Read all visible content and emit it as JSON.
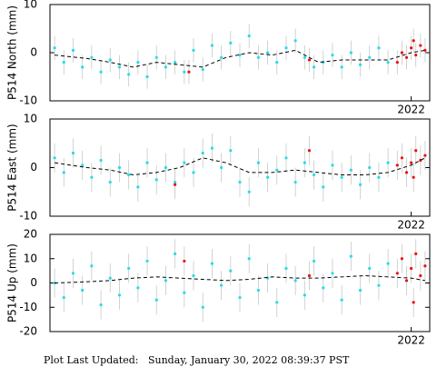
{
  "chart_data": [
    {
      "type": "scatter",
      "ylabel": "P514 North (mm)",
      "xlim": [
        2014.2,
        2022.4
      ],
      "ylim": [
        -10,
        10
      ],
      "xticks": [
        2022
      ],
      "yticks": [
        -10,
        0,
        10
      ],
      "series": [
        {
          "color": "#22ddee",
          "error": 2.5,
          "x": [
            2014.3,
            2014.5,
            2014.7,
            2014.9,
            2015.1,
            2015.3,
            2015.5,
            2015.7,
            2015.9,
            2016.1,
            2016.3,
            2016.5,
            2016.7,
            2016.9,
            2017.1,
            2017.3,
            2017.5,
            2017.7,
            2017.9,
            2018.1,
            2018.3,
            2018.5,
            2018.7,
            2018.9,
            2019.1,
            2019.3,
            2019.5,
            2019.7,
            2019.9,
            2020.1,
            2020.3,
            2020.5,
            2020.7,
            2020.9,
            2021.1,
            2021.3,
            2021.5
          ],
          "values": [
            1,
            -2,
            0.5,
            -3,
            -1,
            -4,
            -1.5,
            -3,
            -4.5,
            -2,
            -5,
            -1,
            -3,
            -2,
            -4,
            0.5,
            -3.5,
            1.5,
            -1,
            2,
            -0.5,
            3.5,
            -1,
            0,
            -2,
            1,
            2.5,
            -1,
            -3,
            -2,
            -0.5,
            -3,
            0,
            -2.5,
            -1,
            1,
            -2
          ]
        },
        {
          "color": "#ee1111",
          "error": 2.5,
          "x": [
            2017.2,
            2019.8,
            2021.7,
            2021.8,
            2021.9,
            2022.0,
            2022.05,
            2022.1,
            2022.2,
            2022.3
          ],
          "values": [
            -4,
            -1.5,
            -2,
            0,
            -1,
            1,
            2.5,
            -0.5,
            1.5,
            0.5
          ]
        }
      ],
      "trend": {
        "color": "#000000",
        "x": [
          2014.3,
          2015.0,
          2015.5,
          2016.0,
          2016.5,
          2017.0,
          2017.5,
          2018.0,
          2018.5,
          2019.0,
          2019.5,
          2020.0,
          2020.5,
          2021.0,
          2021.5,
          2022.0,
          2022.3
        ],
        "values": [
          -0.5,
          -1.2,
          -2,
          -3,
          -2,
          -2.5,
          -3,
          -1,
          0,
          -0.5,
          0.5,
          -2,
          -1.5,
          -1.5,
          -1.5,
          0,
          0.5
        ]
      }
    },
    {
      "type": "scatter",
      "ylabel": "P514 East (mm)",
      "xlim": [
        2014.2,
        2022.4
      ],
      "ylim": [
        -10,
        10
      ],
      "xticks": [
        2022
      ],
      "yticks": [
        -10,
        0,
        10
      ],
      "series": [
        {
          "color": "#22ddee",
          "error": 3,
          "x": [
            2014.3,
            2014.5,
            2014.7,
            2014.9,
            2015.1,
            2015.3,
            2015.5,
            2015.7,
            2015.9,
            2016.1,
            2016.3,
            2016.5,
            2016.7,
            2016.9,
            2017.1,
            2017.3,
            2017.5,
            2017.7,
            2017.9,
            2018.1,
            2018.3,
            2018.5,
            2018.7,
            2018.9,
            2019.1,
            2019.3,
            2019.5,
            2019.7,
            2019.9,
            2020.1,
            2020.3,
            2020.5,
            2020.7,
            2020.9,
            2021.1,
            2021.3,
            2021.5
          ],
          "values": [
            2,
            -1,
            3,
            0.5,
            -2,
            1.5,
            -3,
            0,
            -1.5,
            -4,
            1,
            -2.5,
            0,
            -3,
            1,
            -1,
            3,
            4,
            0,
            3.5,
            -3,
            -5,
            1,
            -2,
            -0.5,
            2,
            -3,
            1,
            -1.5,
            -4,
            0.5,
            -2,
            -0.5,
            -3.5,
            0,
            -2,
            1
          ]
        },
        {
          "color": "#ee1111",
          "error": 3,
          "x": [
            2016.9,
            2019.8,
            2021.7,
            2021.8,
            2021.9,
            2022.0,
            2022.05,
            2022.1,
            2022.2,
            2022.3
          ],
          "values": [
            -3.5,
            3.5,
            0.5,
            2,
            -1,
            1,
            -2,
            3.5,
            1.5,
            2.5
          ]
        }
      ],
      "trend": {
        "color": "#000000",
        "x": [
          2014.3,
          2015.0,
          2015.5,
          2016.0,
          2016.5,
          2017.0,
          2017.5,
          2018.0,
          2018.5,
          2019.0,
          2019.5,
          2020.0,
          2020.5,
          2021.0,
          2021.5,
          2022.0,
          2022.3
        ],
        "values": [
          1,
          0,
          -0.5,
          -1.5,
          -1,
          0,
          2,
          1,
          -1,
          -1,
          -0.5,
          -1,
          -1.5,
          -1.5,
          -1,
          0.5,
          2
        ]
      }
    },
    {
      "type": "scatter",
      "ylabel": "P514 Up (mm)",
      "xlim": [
        2014.2,
        2022.4
      ],
      "ylim": [
        -20,
        20
      ],
      "xticks": [
        2022
      ],
      "yticks": [
        -20,
        -10,
        0,
        10,
        20
      ],
      "series": [
        {
          "color": "#22ddee",
          "error": 6,
          "x": [
            2014.3,
            2014.5,
            2014.7,
            2014.9,
            2015.1,
            2015.3,
            2015.5,
            2015.7,
            2015.9,
            2016.1,
            2016.3,
            2016.5,
            2016.7,
            2016.9,
            2017.1,
            2017.3,
            2017.5,
            2017.7,
            2017.9,
            2018.1,
            2018.3,
            2018.5,
            2018.7,
            2018.9,
            2019.1,
            2019.3,
            2019.5,
            2019.7,
            2019.9,
            2020.1,
            2020.3,
            2020.5,
            2020.7,
            2020.9,
            2021.1,
            2021.3,
            2021.5
          ],
          "values": [
            0,
            -6,
            4,
            -3,
            7,
            -9,
            2,
            -5,
            6,
            -2,
            9,
            -7,
            1,
            12,
            -4,
            3,
            -10,
            8,
            -1,
            5,
            -6,
            10,
            -3,
            2,
            -8,
            6,
            1,
            -5,
            9,
            -2,
            4,
            -7,
            11,
            -3,
            6,
            -1,
            8
          ]
        },
        {
          "color": "#ee1111",
          "error": 6,
          "x": [
            2017.1,
            2019.8,
            2021.7,
            2021.8,
            2021.9,
            2022.0,
            2022.05,
            2022.1,
            2022.2,
            2022.3
          ],
          "values": [
            9,
            3,
            4,
            10,
            1,
            6,
            -8,
            12,
            3,
            7
          ]
        }
      ],
      "trend": {
        "color": "#000000",
        "x": [
          2014.3,
          2015.0,
          2015.5,
          2016.0,
          2016.5,
          2017.0,
          2017.5,
          2018.0,
          2018.5,
          2019.0,
          2019.5,
          2020.0,
          2020.5,
          2021.0,
          2021.5,
          2022.0,
          2022.3
        ],
        "values": [
          0,
          0.5,
          1,
          2,
          2.5,
          2,
          1.5,
          1,
          1.5,
          2.5,
          2,
          2,
          2.5,
          3,
          2.5,
          2,
          1
        ]
      }
    }
  ],
  "footer": "Plot Last Updated:   Sunday, January 30, 2022 08:39:37 PST"
}
